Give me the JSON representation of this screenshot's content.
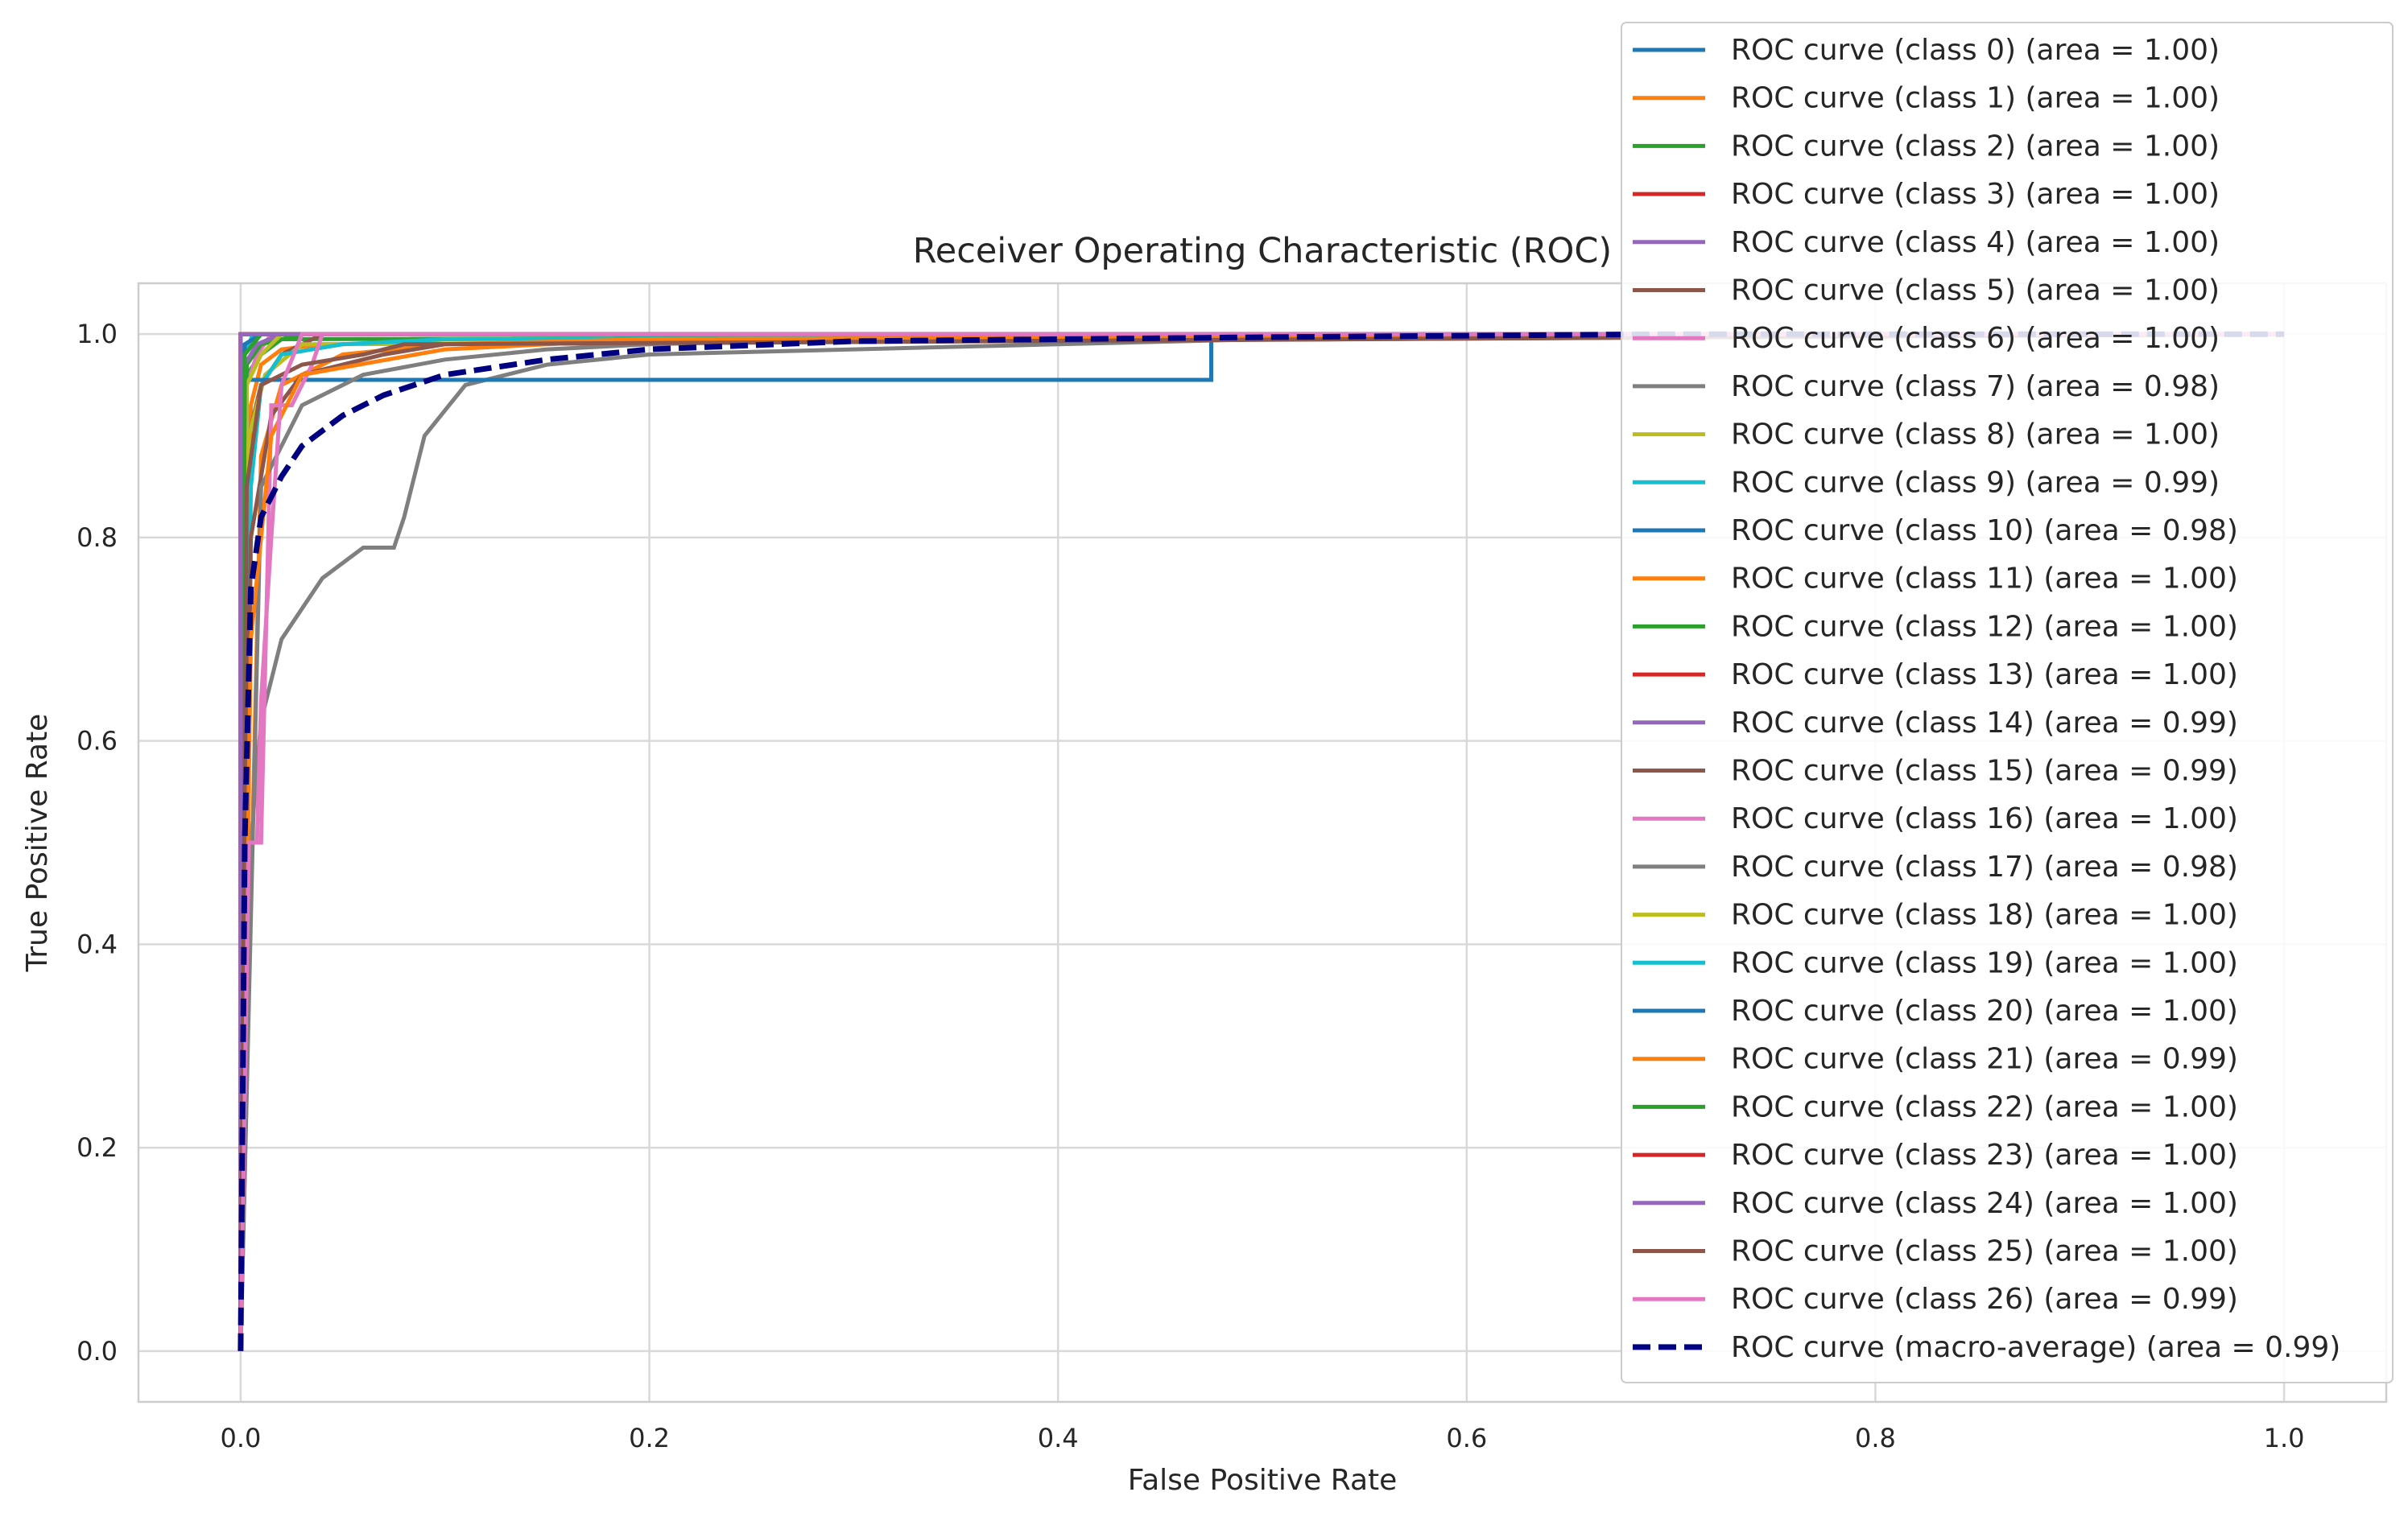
{
  "chart_data": {
    "type": "line",
    "title": "Receiver Operating Characteristic (ROC)",
    "xlabel": "False Positive Rate",
    "ylabel": "True Positive Rate",
    "xlim": [
      -0.05,
      1.05
    ],
    "ylim": [
      -0.05,
      1.05
    ],
    "xticks": [
      "0.0",
      "0.2",
      "0.4",
      "0.6",
      "0.8",
      "1.0"
    ],
    "yticks": [
      "0.0",
      "0.2",
      "0.4",
      "0.6",
      "0.8",
      "1.0"
    ],
    "grid": true,
    "legend_position": "upper right",
    "colors": {
      "palette": [
        "#1f77b4",
        "#ff7f0e",
        "#2ca02c",
        "#d62728",
        "#9467bd",
        "#8c564b",
        "#e377c2",
        "#7f7f7f",
        "#bcbd22",
        "#17becf"
      ],
      "macro": "#000080",
      "grid": "#d9d9d9",
      "spine": "#cccccc"
    },
    "series": [
      {
        "name": "ROC curve (class 0) (area = 1.00)",
        "x": [
          0,
          0,
          1
        ],
        "y": [
          0,
          1.0,
          1.0
        ]
      },
      {
        "name": "ROC curve (class 1) (area = 1.00)",
        "x": [
          0,
          0.005,
          0.01,
          0.02,
          0.04,
          1
        ],
        "y": [
          0,
          0.93,
          0.97,
          0.985,
          0.99,
          1.0
        ]
      },
      {
        "name": "ROC curve (class 2) (area = 1.00)",
        "x": [
          0,
          0.003,
          0.01,
          0.02,
          1
        ],
        "y": [
          0,
          0.96,
          0.98,
          0.995,
          1.0
        ]
      },
      {
        "name": "ROC curve (class 3) (area = 1.00)",
        "x": [
          0,
          0,
          1
        ],
        "y": [
          0,
          1.0,
          1.0
        ]
      },
      {
        "name": "ROC curve (class 4) (area = 1.00)",
        "x": [
          0,
          0,
          1
        ],
        "y": [
          0,
          1.0,
          1.0
        ]
      },
      {
        "name": "ROC curve (class 5) (area = 1.00)",
        "x": [
          0,
          0.004,
          0.01,
          0.02,
          0.04,
          1
        ],
        "y": [
          0,
          0.9,
          0.95,
          0.98,
          1.0,
          1.0
        ]
      },
      {
        "name": "ROC curve (class 6) (area = 1.00)",
        "x": [
          0,
          0.003,
          0.008,
          0.015,
          1
        ],
        "y": [
          0,
          0.95,
          0.98,
          1.0,
          1.0
        ]
      },
      {
        "name": "ROC curve (class 7) (area = 0.98)",
        "x": [
          0,
          0.005,
          0.01,
          0.02,
          0.04,
          0.06,
          0.075,
          0.08,
          0.09,
          0.11,
          0.15,
          0.2,
          0.3,
          0.4,
          0.5,
          0.6,
          1
        ],
        "y": [
          0,
          0.5,
          0.62,
          0.7,
          0.76,
          0.79,
          0.79,
          0.82,
          0.9,
          0.95,
          0.97,
          0.98,
          0.985,
          0.99,
          0.995,
          1.0,
          1.0
        ]
      },
      {
        "name": "ROC curve (class 8) (area = 1.00)",
        "x": [
          0,
          0.004,
          0.012,
          0.03,
          1
        ],
        "y": [
          0,
          0.9,
          0.96,
          0.99,
          1.0
        ]
      },
      {
        "name": "ROC curve (class 9) (area = 0.99)",
        "x": [
          0,
          0.005,
          0.01,
          0.02,
          0.05,
          0.1,
          1
        ],
        "y": [
          0,
          0.85,
          0.95,
          0.98,
          0.99,
          0.995,
          1.0
        ]
      },
      {
        "name": "ROC curve (class 10) (area = 0.98)",
        "x": [
          0,
          0,
          0.475,
          0.475,
          1
        ],
        "y": [
          0,
          0.955,
          0.955,
          1.0,
          1.0
        ]
      },
      {
        "name": "ROC curve (class 11) (area = 1.00)",
        "x": [
          0,
          0.01,
          0.02,
          0.05,
          0.1,
          0.2,
          1
        ],
        "y": [
          0,
          0.88,
          0.95,
          0.98,
          0.99,
          0.995,
          1.0
        ]
      },
      {
        "name": "ROC curve (class 12) (area = 1.00)",
        "x": [
          0,
          0.003,
          0.01,
          0.03,
          1
        ],
        "y": [
          0,
          0.97,
          0.99,
          1.0,
          1.0
        ]
      },
      {
        "name": "ROC curve (class 13) (area = 1.00)",
        "x": [
          0,
          0,
          1
        ],
        "y": [
          0,
          1.0,
          1.0
        ]
      },
      {
        "name": "ROC curve (class 14) (area = 0.99)",
        "x": [
          0,
          0.002,
          0.008,
          0.02,
          1
        ],
        "y": [
          0,
          0.97,
          0.99,
          1.0,
          1.0
        ]
      },
      {
        "name": "ROC curve (class 15) (area = 0.99)",
        "x": [
          0,
          0.005,
          0.015,
          0.03,
          0.05,
          0.07,
          0.1,
          1
        ],
        "y": [
          0,
          0.8,
          0.92,
          0.96,
          0.97,
          0.98,
          0.99,
          1.0
        ]
      },
      {
        "name": "ROC curve (class 16) (area = 1.00)",
        "x": [
          0,
          0.005,
          0.01,
          0.015,
          0.025,
          0.035,
          0.04,
          1
        ],
        "y": [
          0,
          0.5,
          0.5,
          0.93,
          0.93,
          0.97,
          1.0,
          1.0
        ]
      },
      {
        "name": "ROC curve (class 17) (area = 0.98)",
        "x": [
          0,
          0.01,
          0.03,
          0.06,
          0.1,
          0.15,
          0.2,
          0.3,
          0.4,
          1
        ],
        "y": [
          0,
          0.85,
          0.93,
          0.96,
          0.975,
          0.985,
          0.99,
          0.995,
          1.0,
          1.0
        ]
      },
      {
        "name": "ROC curve (class 18) (area = 1.00)",
        "x": [
          0,
          0.003,
          0.01,
          0.02,
          1
        ],
        "y": [
          0,
          0.95,
          0.98,
          1.0,
          1.0
        ]
      },
      {
        "name": "ROC curve (class 19) (area = 1.00)",
        "x": [
          0,
          0.002,
          0.006,
          1
        ],
        "y": [
          0,
          0.98,
          1.0,
          1.0
        ]
      },
      {
        "name": "ROC curve (class 20) (area = 1.00)",
        "x": [
          0,
          0.002,
          0.01,
          1
        ],
        "y": [
          0,
          0.99,
          1.0,
          1.0
        ]
      },
      {
        "name": "ROC curve (class 21) (area = 0.99)",
        "x": [
          0,
          0.005,
          0.015,
          0.03,
          0.1,
          0.2,
          1
        ],
        "y": [
          0,
          0.7,
          0.9,
          0.96,
          0.985,
          0.995,
          1.0
        ]
      },
      {
        "name": "ROC curve (class 22) (area = 1.00)",
        "x": [
          0,
          0.002,
          0.01,
          1
        ],
        "y": [
          0,
          0.98,
          1.0,
          1.0
        ]
      },
      {
        "name": "ROC curve (class 23) (area = 1.00)",
        "x": [
          0,
          0,
          1
        ],
        "y": [
          0,
          1.0,
          1.0
        ]
      },
      {
        "name": "ROC curve (class 24) (area = 1.00)",
        "x": [
          0,
          0,
          1
        ],
        "y": [
          0,
          1.0,
          1.0
        ]
      },
      {
        "name": "ROC curve (class 25) (area = 1.00)",
        "x": [
          0,
          0.003,
          0.01,
          0.03,
          0.06,
          0.08,
          1
        ],
        "y": [
          0,
          0.85,
          0.95,
          0.97,
          0.98,
          0.99,
          1.0
        ]
      },
      {
        "name": "ROC curve (class 26) (area = 0.99)",
        "x": [
          0,
          0.004,
          0.008,
          0.01,
          0.015,
          0.02,
          0.03,
          1
        ],
        "y": [
          0,
          0.5,
          0.5,
          0.64,
          0.8,
          0.95,
          1.0,
          1.0
        ]
      },
      {
        "name": "ROC curve (macro-average) (area = 0.99)",
        "dashed": true,
        "x": [
          0,
          0.002,
          0.005,
          0.01,
          0.02,
          0.03,
          0.05,
          0.07,
          0.1,
          0.15,
          0.2,
          0.3,
          0.5,
          0.7,
          1
        ],
        "y": [
          0,
          0.5,
          0.75,
          0.82,
          0.86,
          0.89,
          0.92,
          0.94,
          0.96,
          0.975,
          0.985,
          0.993,
          0.997,
          1.0,
          1.0
        ]
      }
    ]
  }
}
